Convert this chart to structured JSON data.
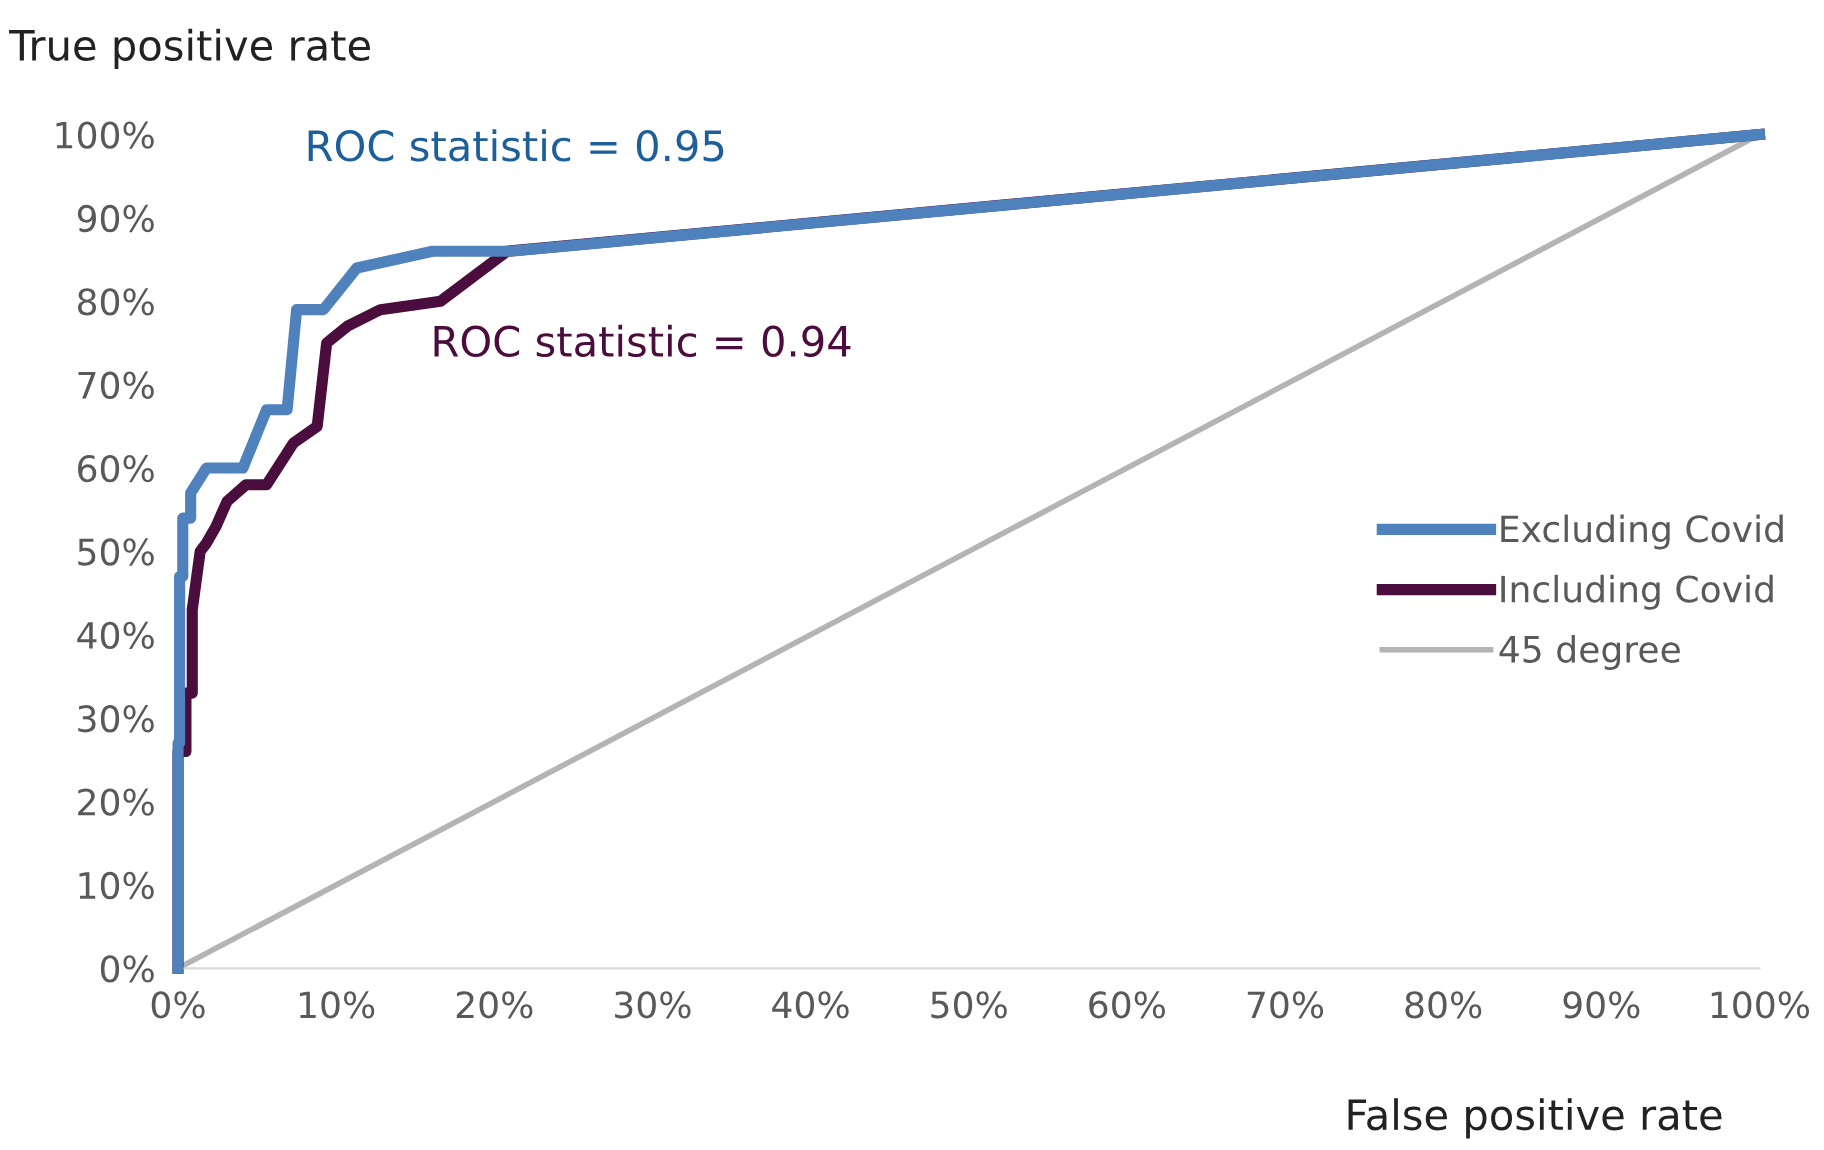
{
  "chart_data": {
    "type": "line",
    "xlabel": "False positive rate",
    "ylabel": "True positive rate",
    "annotations": [
      "ROC statistic = 0.95",
      "ROC statistic = 0.94"
    ],
    "xlim": [
      0,
      100
    ],
    "ylim": [
      0,
      100
    ],
    "xticks": [
      {
        "value": 0,
        "label": "0%"
      },
      {
        "value": 10,
        "label": "10%"
      },
      {
        "value": 20,
        "label": "20%"
      },
      {
        "value": 30,
        "label": "30%"
      },
      {
        "value": 40,
        "label": "40%"
      },
      {
        "value": 50,
        "label": "50%"
      },
      {
        "value": 60,
        "label": "60%"
      },
      {
        "value": 70,
        "label": "70%"
      },
      {
        "value": 80,
        "label": "80%"
      },
      {
        "value": 90,
        "label": "90%"
      },
      {
        "value": 100,
        "label": "100%"
      }
    ],
    "yticks": [
      {
        "value": 0,
        "label": "0%"
      },
      {
        "value": 10,
        "label": "10%"
      },
      {
        "value": 20,
        "label": "20%"
      },
      {
        "value": 30,
        "label": "30%"
      },
      {
        "value": 40,
        "label": "40%"
      },
      {
        "value": 50,
        "label": "50%"
      },
      {
        "value": 60,
        "label": "60%"
      },
      {
        "value": 70,
        "label": "70%"
      },
      {
        "value": 80,
        "label": "80%"
      },
      {
        "value": 90,
        "label": "90%"
      },
      {
        "value": 100,
        "label": "100%"
      }
    ],
    "grid": false,
    "legend": "right",
    "marker": "none",
    "line_style": "solid",
    "series": [
      {
        "name": "Excluding Covid",
        "color": "#4f81bd",
        "x": [
          0,
          0,
          0.1,
          0.1,
          0.3,
          0.3,
          0.8,
          0.8,
          1.8,
          4.1,
          5.6,
          6.9,
          7.5,
          9.2,
          11.3,
          16.1,
          21,
          100
        ],
        "values": [
          0,
          27,
          27,
          47,
          47,
          54,
          54,
          57,
          60,
          60,
          67,
          67,
          79,
          79,
          84,
          86,
          86,
          100
        ]
      },
      {
        "name": "Including Covid",
        "color": "#4b0d3d",
        "x": [
          0,
          0,
          0.5,
          0.5,
          0.9,
          0.9,
          1.4,
          1.8,
          2.4,
          3.1,
          4.3,
          5.6,
          7.3,
          8.8,
          9.4,
          10.7,
          12.8,
          16.6,
          20.8,
          100
        ],
        "values": [
          0,
          26,
          26,
          33,
          33,
          43,
          50,
          51,
          53,
          56,
          58,
          58,
          63,
          65,
          75,
          77,
          79,
          80,
          86,
          100
        ]
      },
      {
        "name": "45 degree",
        "color": "#b4b4b4",
        "x": [
          0,
          100
        ],
        "values": [
          0,
          100
        ]
      }
    ]
  }
}
